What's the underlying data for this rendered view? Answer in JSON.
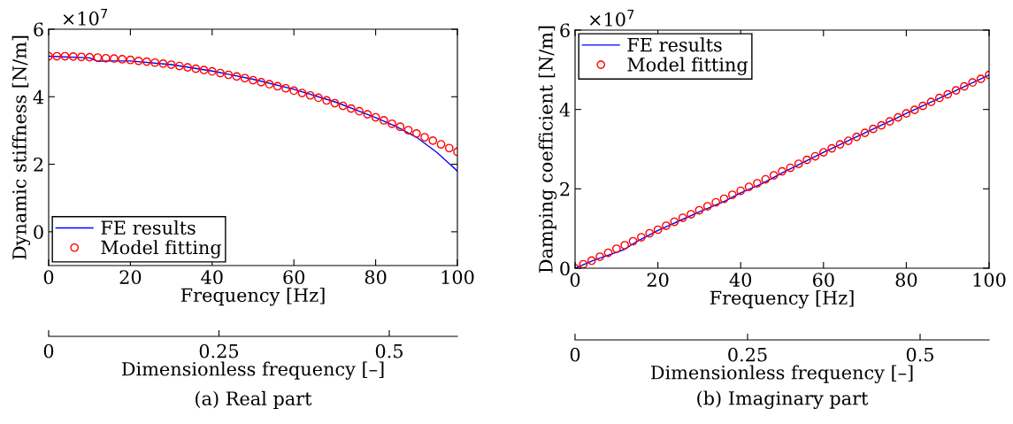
{
  "chart_data": [
    {
      "type": "line",
      "title": "(a) Real part",
      "xlabel": "Frequency [Hz]",
      "ylabel": "Dynamic stiffness [N/m]",
      "x2label": "Dimensionless frequency [–]",
      "xlim": [
        0,
        100
      ],
      "xticks": [
        0,
        20,
        40,
        60,
        80,
        100
      ],
      "ylim": [
        -1,
        6
      ],
      "yticks": [
        0,
        2,
        4,
        6
      ],
      "x2lim": [
        0,
        0.6
      ],
      "x2ticks": [
        0,
        0.25,
        0.5
      ],
      "annotations": [
        "×10$^{7}$"
      ],
      "legend": "bottom left",
      "grid": false,
      "series": [
        {
          "name": "FE results",
          "color": "#0000ff",
          "marker": "none",
          "line_style": "solid",
          "x": [
            0,
            10,
            12,
            14,
            20,
            30,
            40,
            50,
            60,
            70,
            75,
            80,
            85,
            90,
            95,
            100
          ],
          "values": [
            5.2,
            5.15,
            5.05,
            5.06,
            5.06,
            4.95,
            4.76,
            4.52,
            4.22,
            3.85,
            3.62,
            3.38,
            3.12,
            2.8,
            2.35,
            1.8
          ]
        },
        {
          "name": "Model fitting",
          "type": "scatter",
          "color": "#ff0000",
          "marker": "circle",
          "x": [
            0,
            2,
            4,
            6,
            8,
            10,
            12,
            14,
            16,
            18,
            20,
            22,
            24,
            26,
            28,
            30,
            32,
            34,
            36,
            38,
            40,
            42,
            44,
            46,
            48,
            50,
            52,
            54,
            56,
            58,
            60,
            62,
            64,
            66,
            68,
            70,
            72,
            74,
            76,
            78,
            80,
            82,
            84,
            86,
            88,
            90,
            92,
            94,
            96,
            98,
            100
          ],
          "values": [
            5.2,
            5.2,
            5.2,
            5.19,
            5.18,
            5.17,
            5.16,
            5.14,
            5.13,
            5.11,
            5.09,
            5.06,
            5.04,
            5.01,
            4.98,
            4.95,
            4.91,
            4.87,
            4.83,
            4.79,
            4.75,
            4.7,
            4.65,
            4.6,
            4.55,
            4.49,
            4.43,
            4.37,
            4.31,
            4.25,
            4.18,
            4.11,
            4.04,
            3.97,
            3.89,
            3.81,
            3.73,
            3.65,
            3.57,
            3.48,
            3.39,
            3.3,
            3.2,
            3.11,
            3.01,
            2.91,
            2.8,
            2.7,
            2.59,
            2.48,
            2.37
          ]
        }
      ]
    },
    {
      "type": "line",
      "title": "(b) Imaginary part",
      "xlabel": "Frequency [Hz]",
      "ylabel": "Damping coefficient [N/m]",
      "x2label": "Dimensionless frequency [–]",
      "xlim": [
        0,
        100
      ],
      "xticks": [
        0,
        20,
        40,
        60,
        80,
        100
      ],
      "ylim": [
        0,
        6
      ],
      "yticks": [
        0,
        2,
        4,
        6
      ],
      "x2lim": [
        0,
        0.6
      ],
      "x2ticks": [
        0,
        0.25,
        0.5
      ],
      "annotations": [
        "×10$^{7}$"
      ],
      "legend": "top left",
      "grid": false,
      "series": [
        {
          "name": "FE results",
          "color": "#0000ff",
          "marker": "none",
          "line_style": "solid",
          "x": [
            0,
            5,
            10,
            12,
            15,
            20,
            30,
            36,
            40,
            45,
            50,
            60,
            70,
            80,
            90,
            100
          ],
          "values": [
            0,
            0.22,
            0.4,
            0.48,
            0.68,
            0.95,
            1.42,
            1.68,
            1.9,
            2.12,
            2.4,
            2.92,
            3.41,
            3.9,
            4.38,
            4.87
          ]
        },
        {
          "name": "Model fitting",
          "type": "scatter",
          "color": "#ff0000",
          "marker": "circle",
          "x": [
            0,
            2,
            4,
            6,
            8,
            10,
            12,
            14,
            16,
            18,
            20,
            22,
            24,
            26,
            28,
            30,
            32,
            34,
            36,
            38,
            40,
            42,
            44,
            46,
            48,
            50,
            52,
            54,
            56,
            58,
            60,
            62,
            64,
            66,
            68,
            70,
            72,
            74,
            76,
            78,
            80,
            82,
            84,
            86,
            88,
            90,
            92,
            94,
            96,
            98,
            100
          ],
          "values": [
            0,
            0.1,
            0.19,
            0.29,
            0.39,
            0.49,
            0.58,
            0.68,
            0.78,
            0.88,
            0.97,
            1.07,
            1.17,
            1.27,
            1.36,
            1.46,
            1.56,
            1.66,
            1.75,
            1.85,
            1.95,
            2.05,
            2.14,
            2.24,
            2.34,
            2.44,
            2.53,
            2.63,
            2.73,
            2.82,
            2.92,
            3.02,
            3.12,
            3.21,
            3.31,
            3.41,
            3.51,
            3.6,
            3.7,
            3.8,
            3.9,
            3.99,
            4.09,
            4.19,
            4.29,
            4.38,
            4.48,
            4.58,
            4.68,
            4.77,
            4.87
          ]
        }
      ]
    }
  ]
}
